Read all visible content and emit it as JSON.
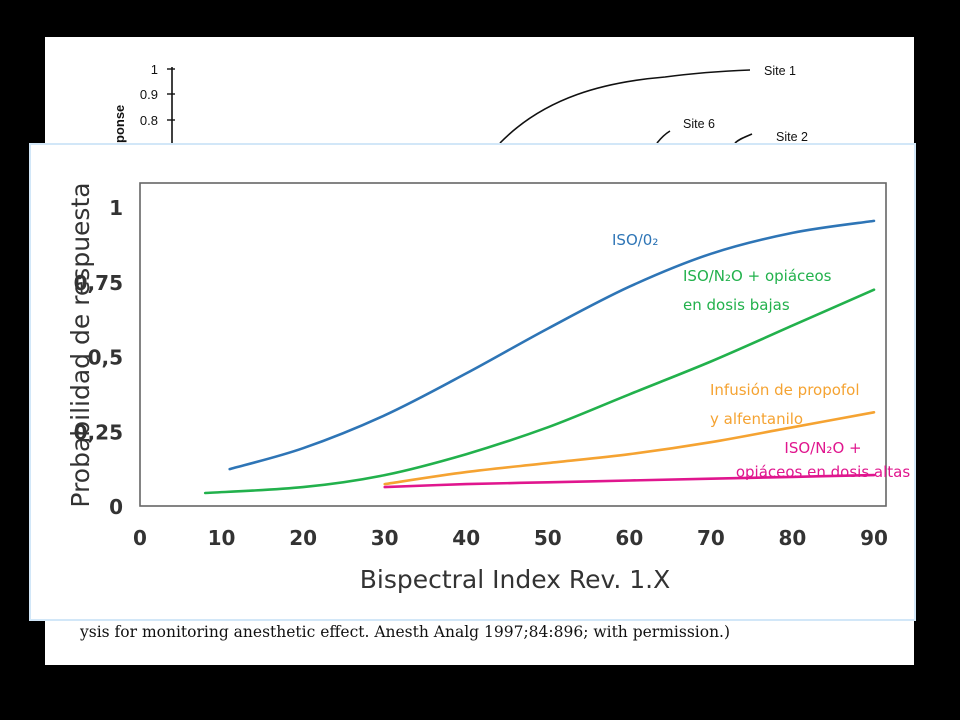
{
  "background_figure": {
    "ylabel_fragment": "ponse",
    "ytick_labels": [
      "1",
      "0.9",
      "0.8"
    ],
    "site_labels": [
      "Site 1",
      "Site 6",
      "Site 2"
    ],
    "caption_fragment": "ysis for monitoring anesthetic effect. Anesth Analg 1997;84:896; with permission.)"
  },
  "chart_data": {
    "type": "line",
    "title": "",
    "xlabel": "Bispectral Index Rev. 1.X",
    "ylabel": "Probabilidad de respuesta",
    "xlim": [
      0,
      90
    ],
    "ylim": [
      0,
      1
    ],
    "xticks": [
      "0",
      "10",
      "20",
      "30",
      "40",
      "50",
      "60",
      "70",
      "80",
      "90"
    ],
    "yticks": [
      "0",
      "0,25",
      "0,5",
      "0,75",
      "1"
    ],
    "grid": false,
    "series": [
      {
        "name": "ISO/0₂",
        "color": "#2e75b6",
        "x": [
          11,
          20,
          30,
          40,
          50,
          60,
          70,
          80,
          90
        ],
        "y": [
          0.12,
          0.19,
          0.3,
          0.44,
          0.59,
          0.73,
          0.84,
          0.91,
          0.95
        ]
      },
      {
        "name": "ISO/N₂O + opiáceos en dosis bajas",
        "color": "#22b14c",
        "x": [
          8,
          20,
          30,
          40,
          50,
          60,
          70,
          80,
          90
        ],
        "y": [
          0.04,
          0.06,
          0.1,
          0.17,
          0.26,
          0.37,
          0.48,
          0.6,
          0.72
        ]
      },
      {
        "name": "Infusión de propofol y alfentanilo",
        "color": "#f5a332",
        "x": [
          30,
          40,
          50,
          60,
          70,
          80,
          90
        ],
        "y": [
          0.07,
          0.11,
          0.14,
          0.17,
          0.21,
          0.26,
          0.31
        ]
      },
      {
        "name": "ISO/N₂O + opiáceos en dosis altas",
        "color": "#e0168e",
        "x": [
          30,
          40,
          50,
          60,
          70,
          80,
          90
        ],
        "y": [
          0.06,
          0.07,
          0.076,
          0.082,
          0.088,
          0.094,
          0.1
        ]
      }
    ],
    "series_labels": [
      [
        "ISO/0₂"
      ],
      [
        "ISO/N₂O + opiáceos",
        "en dosis bajas"
      ],
      [
        "Infusión de propofol",
        "y alfentanilo"
      ],
      [
        "ISO/N₂O +",
        "opiáceos en dosis altas"
      ]
    ]
  }
}
